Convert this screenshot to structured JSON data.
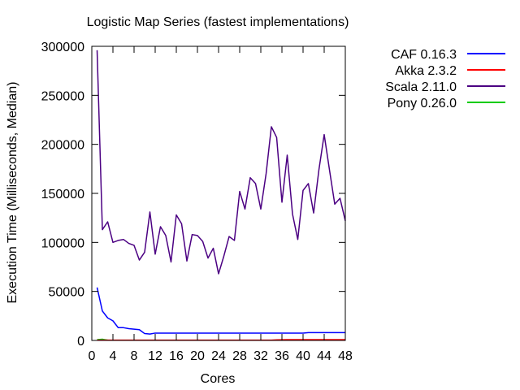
{
  "chart_data": {
    "type": "line",
    "title": "Logistic Map Series (fastest implementations)",
    "xlabel": "Cores",
    "ylabel": "Execution Time (Milliseconds, Median)",
    "xlim": [
      0,
      48
    ],
    "ylim": [
      0,
      300000
    ],
    "xticks": [
      0,
      4,
      8,
      12,
      16,
      20,
      24,
      28,
      32,
      36,
      40,
      44,
      48
    ],
    "yticks": [
      0,
      50000,
      100000,
      150000,
      200000,
      250000,
      300000
    ],
    "legend_position": "outside-top-right",
    "grid": false,
    "series": [
      {
        "name": "CAF 0.16.3",
        "color": "#0000ff",
        "x": [
          1,
          2,
          3,
          4,
          5,
          6,
          7,
          8,
          9,
          10,
          11,
          12,
          13,
          14,
          15,
          16,
          17,
          18,
          19,
          20,
          21,
          22,
          23,
          24,
          25,
          26,
          27,
          28,
          29,
          30,
          31,
          32,
          33,
          34,
          35,
          36,
          37,
          38,
          39,
          40,
          41,
          42,
          43,
          44,
          45,
          46,
          47,
          48
        ],
        "y": [
          54000,
          30000,
          23000,
          20000,
          13000,
          13000,
          12000,
          11500,
          11000,
          7000,
          6500,
          7500,
          7500,
          7500,
          7500,
          7500,
          7500,
          7500,
          7500,
          7500,
          7500,
          7500,
          7500,
          7500,
          7500,
          7500,
          7500,
          7500,
          7500,
          7500,
          7500,
          7500,
          7500,
          7500,
          7500,
          7500,
          7500,
          7500,
          7500,
          7500,
          8000,
          8000,
          8000,
          8000,
          8000,
          8000,
          8000,
          8000
        ]
      },
      {
        "name": "Akka 2.3.2",
        "color": "#ff0000",
        "x": [
          1,
          2,
          3,
          4,
          5,
          6,
          7,
          8,
          9,
          10,
          11,
          12,
          13,
          14,
          15,
          16,
          17,
          18,
          19,
          20,
          21,
          22,
          23,
          24,
          25,
          26,
          27,
          28,
          29,
          30,
          31,
          32,
          33,
          34,
          35,
          36,
          37,
          38,
          39,
          40,
          41,
          42,
          43,
          44,
          45,
          46,
          47,
          48
        ],
        "y": [
          300,
          300,
          300,
          300,
          300,
          300,
          300,
          300,
          300,
          300,
          300,
          300,
          300,
          300,
          300,
          300,
          300,
          300,
          300,
          300,
          300,
          300,
          300,
          300,
          300,
          300,
          300,
          300,
          300,
          300,
          300,
          300,
          300,
          300,
          600,
          700,
          800,
          800,
          800,
          800,
          800,
          800,
          800,
          800,
          800,
          800,
          800,
          800
        ]
      },
      {
        "name": "Scala 2.11.0",
        "color": "#4b0082",
        "x": [
          1,
          2,
          3,
          4,
          5,
          6,
          7,
          8,
          9,
          10,
          11,
          12,
          13,
          14,
          15,
          16,
          17,
          18,
          19,
          20,
          21,
          22,
          23,
          24,
          25,
          26,
          27,
          28,
          29,
          30,
          31,
          32,
          33,
          34,
          35,
          36,
          37,
          38,
          39,
          40,
          41,
          42,
          43,
          44,
          45,
          46,
          47,
          48
        ],
        "y": [
          296000,
          113000,
          121000,
          100000,
          102000,
          103000,
          99000,
          97000,
          82000,
          90000,
          131000,
          88000,
          116000,
          107000,
          80000,
          128000,
          119000,
          81000,
          108000,
          107000,
          101000,
          84000,
          94000,
          68000,
          86000,
          106000,
          102000,
          152000,
          134000,
          166000,
          160000,
          134000,
          170000,
          218000,
          207000,
          141000,
          189000,
          129000,
          103000,
          153000,
          160000,
          130000,
          174000,
          210000,
          174000,
          139000,
          145000,
          122000
        ]
      },
      {
        "name": "Pony 0.26.0",
        "color": "#00cc00",
        "x": [
          1,
          2,
          3,
          4,
          5,
          6,
          7,
          8,
          9,
          10,
          11,
          12,
          13,
          14,
          15,
          16,
          17,
          18,
          19,
          20,
          21,
          22,
          23,
          24,
          25,
          26,
          27,
          28,
          29,
          30,
          31,
          32,
          33,
          34,
          35,
          36,
          37,
          38,
          39,
          40,
          41,
          42,
          43,
          44,
          45,
          46,
          47,
          48
        ],
        "y": [
          800,
          1200,
          300,
          200,
          200,
          200,
          200,
          200,
          200,
          200,
          200,
          200,
          200,
          200,
          200,
          200,
          200,
          200,
          200,
          200,
          200,
          200,
          200,
          200,
          200,
          200,
          200,
          200,
          200,
          200,
          200,
          200,
          200,
          200,
          200,
          200,
          200,
          200,
          200,
          200,
          200,
          200,
          200,
          200,
          200,
          200,
          200,
          200
        ]
      }
    ]
  }
}
